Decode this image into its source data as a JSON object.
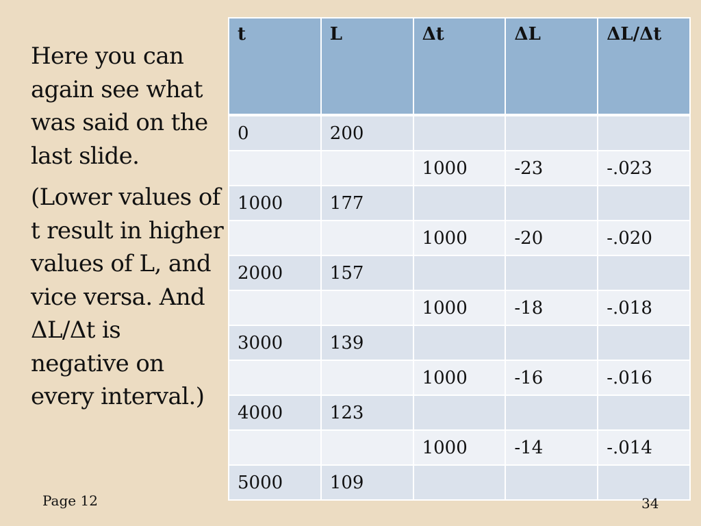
{
  "body_text": {
    "paragraph1": "Here you can again see what was said on the last slide.",
    "paragraph2": "(Lower values of t result in higher values of L, and vice versa. And ΔL/Δt  is negative on every interval.)"
  },
  "table": {
    "headers": [
      "t",
      "L",
      "Δt",
      "ΔL",
      "ΔL/Δt"
    ],
    "rows": [
      [
        "0",
        "200",
        "",
        "",
        ""
      ],
      [
        "",
        "",
        "1000",
        "-23",
        "-.023"
      ],
      [
        "1000",
        "177",
        "",
        "",
        ""
      ],
      [
        "",
        "",
        "1000",
        "-20",
        "-.020"
      ],
      [
        "2000",
        "157",
        "",
        "",
        ""
      ],
      [
        "",
        "",
        "1000",
        "-18",
        "-.018"
      ],
      [
        "3000",
        "139",
        "",
        "",
        ""
      ],
      [
        "",
        "",
        "1000",
        "-16",
        "-.016"
      ],
      [
        "4000",
        "123",
        "",
        "",
        ""
      ],
      [
        "",
        "",
        "1000",
        "-14",
        "-.014"
      ],
      [
        "5000",
        "109",
        "",
        "",
        ""
      ]
    ]
  },
  "footer": {
    "page_label": "Page 12",
    "slide_number": "34"
  },
  "colors": {
    "background": "#ecdcc2",
    "header_fill": "#93b3d1",
    "row_odd": "#dbe2ec",
    "row_even": "#eef1f6"
  }
}
